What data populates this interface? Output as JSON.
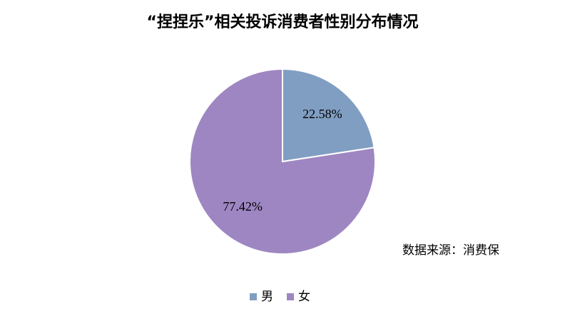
{
  "chart_data": {
    "type": "pie",
    "title": "“捏捏乐”相关投诉消费者性别分布情况",
    "categories": [
      "男",
      "女"
    ],
    "values": [
      22.58,
      77.42
    ],
    "value_labels": [
      "22.58%",
      "77.42%"
    ],
    "colors": [
      "#809ec2",
      "#9e86c2"
    ],
    "annotation": "数据来源：消费保",
    "legend": "bottom"
  }
}
